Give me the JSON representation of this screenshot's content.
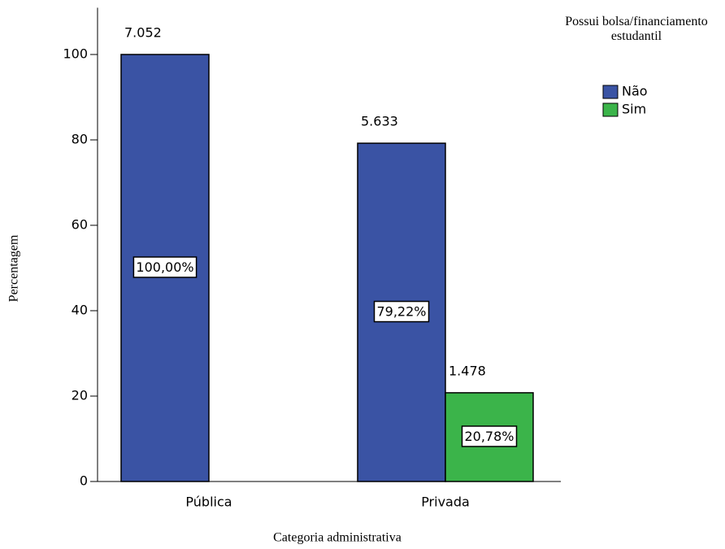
{
  "chart_data": {
    "type": "bar",
    "categories": [
      "Pública",
      "Privada"
    ],
    "series": [
      {
        "name": "Não",
        "color": "#3a53a4",
        "values": [
          100,
          79.22
        ],
        "value_labels": [
          "100,00%",
          "79,22%"
        ],
        "count_labels": [
          "7.052",
          "5.633"
        ]
      },
      {
        "name": "Sim",
        "color": "#3bb44a",
        "values": [
          null,
          20.78
        ],
        "value_labels": [
          null,
          "20,78%"
        ],
        "count_labels": [
          null,
          "1.478"
        ]
      }
    ],
    "ylim": [
      0,
      110
    ],
    "yticks": [
      0,
      20,
      40,
      60,
      80,
      100
    ],
    "y_label": "Percentagem",
    "x_label": "Categoria administrativa",
    "legend_title": "Possui bolsa/financiamento estudantil",
    "legend": "right",
    "grid": false
  }
}
